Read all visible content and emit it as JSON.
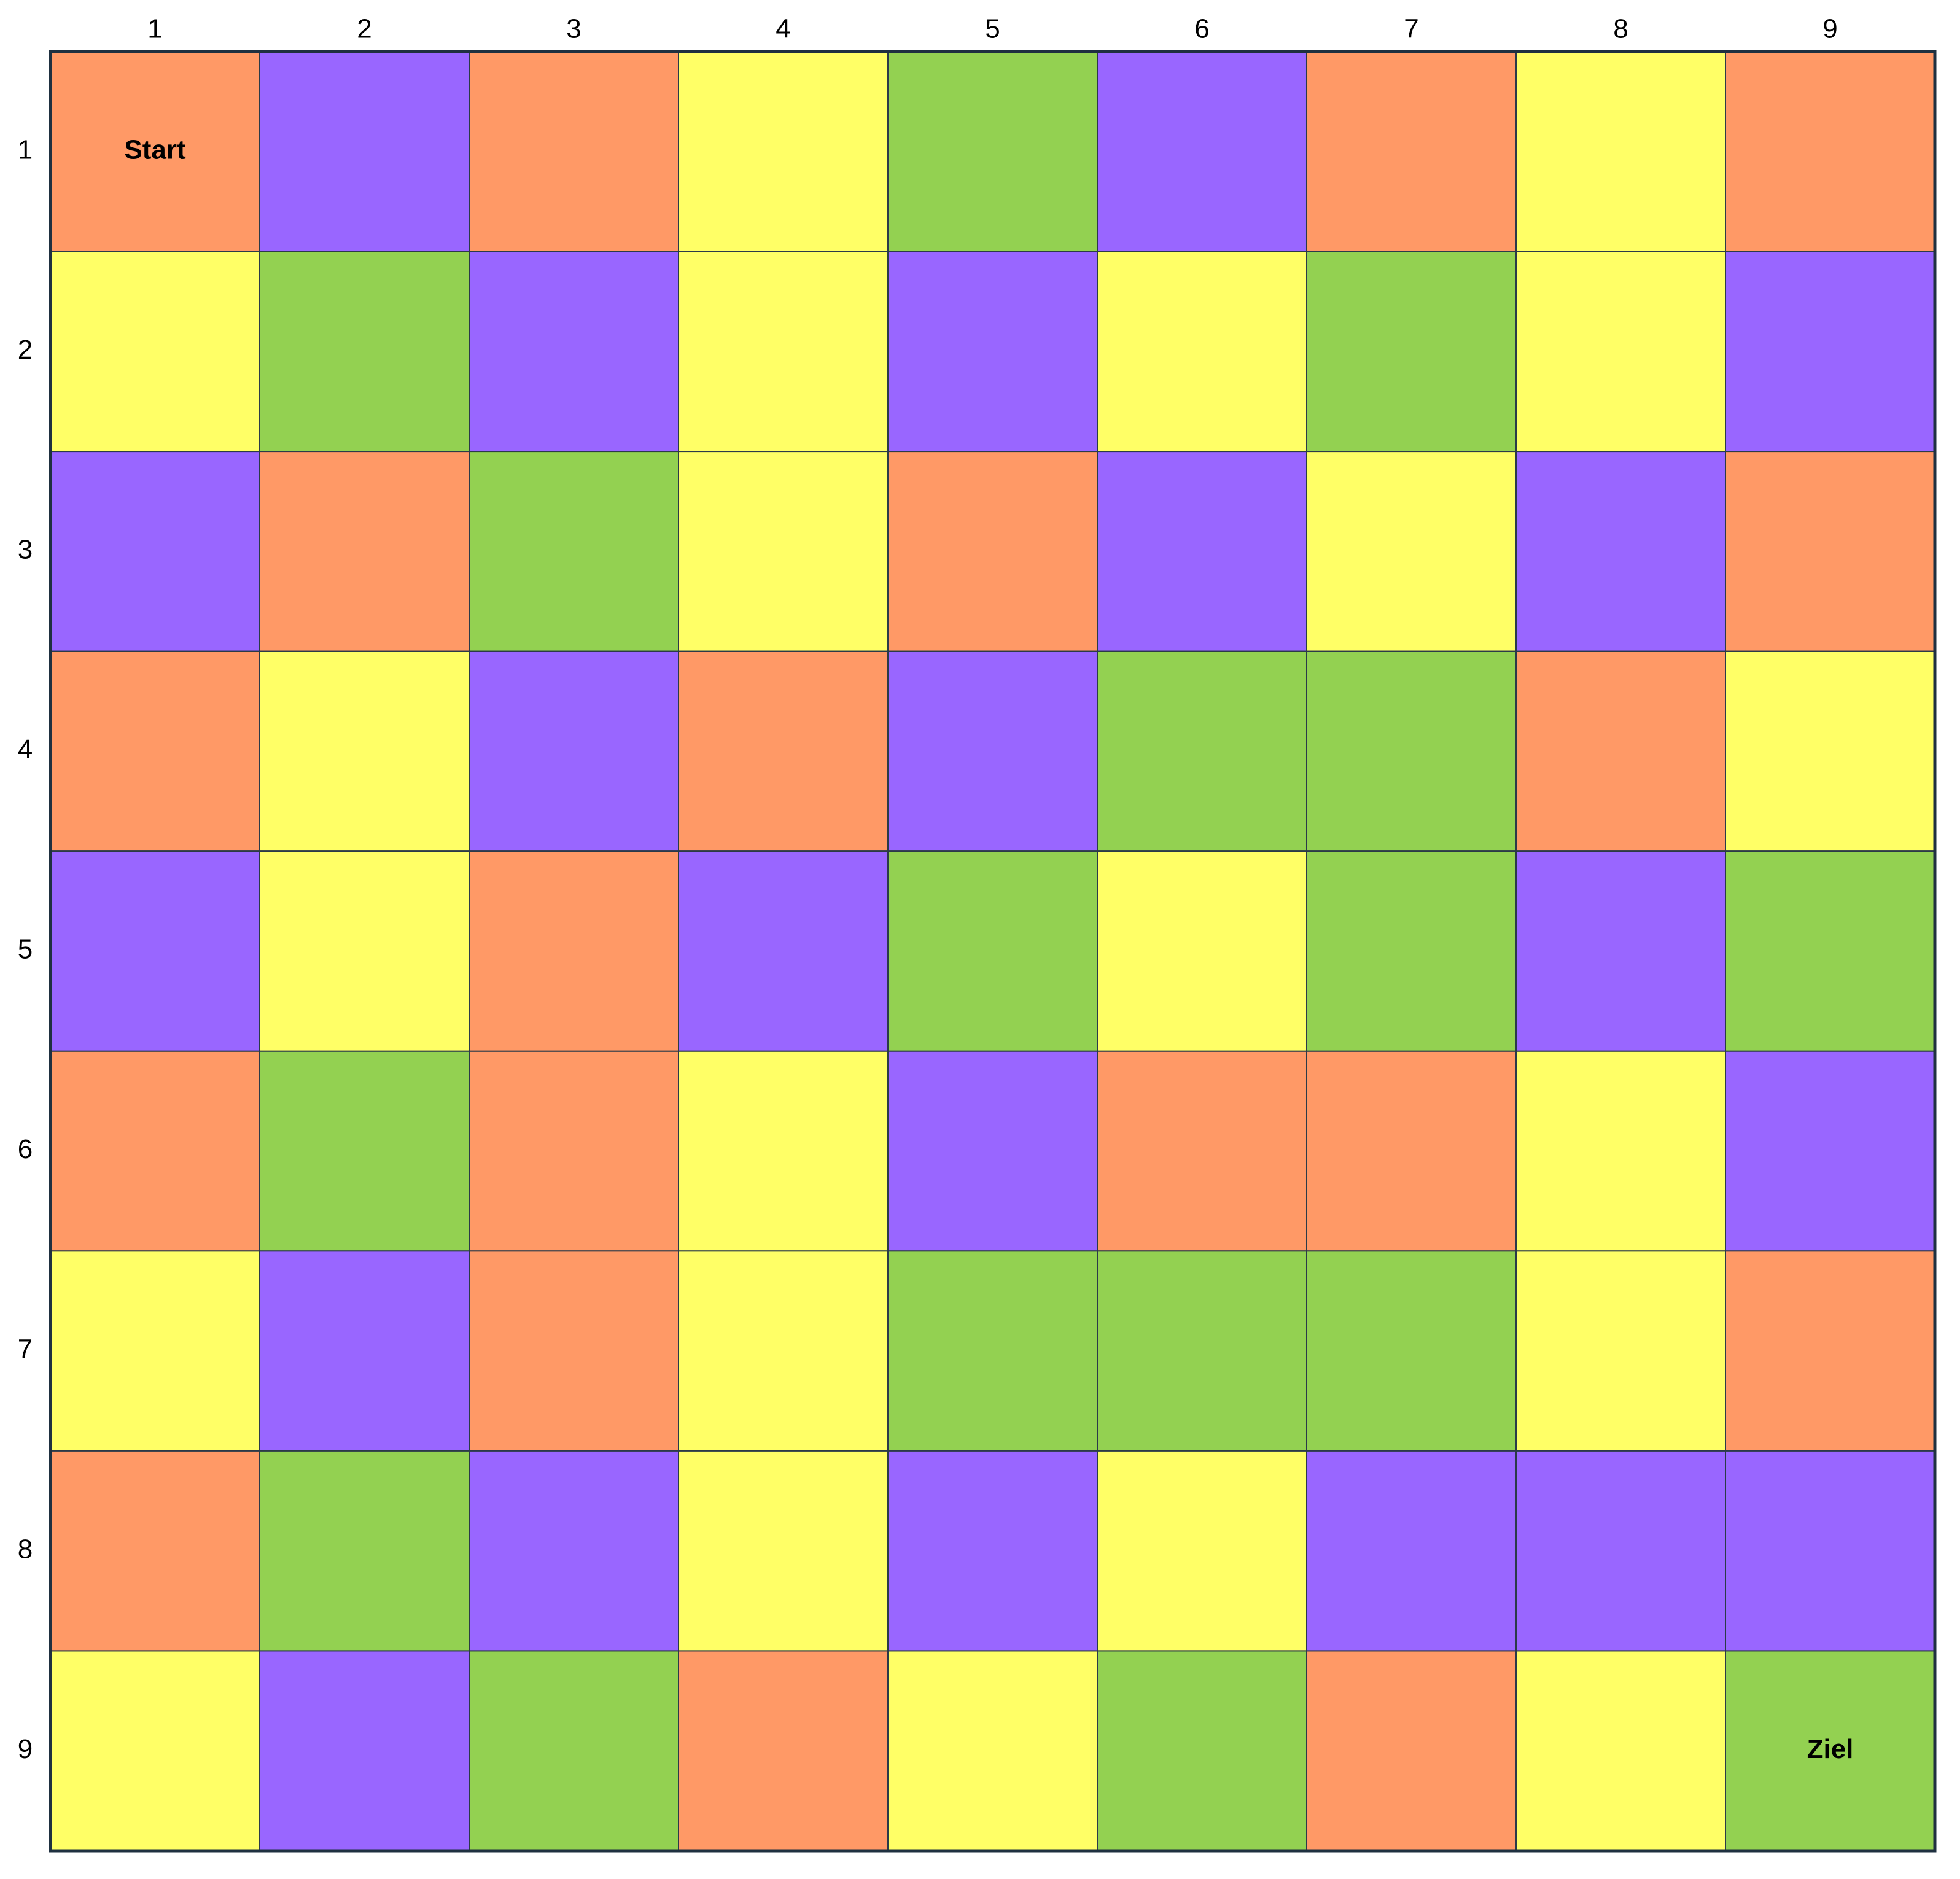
{
  "board": {
    "column_labels": [
      "1",
      "2",
      "3",
      "4",
      "5",
      "6",
      "7",
      "8",
      "9"
    ],
    "row_labels": [
      "1",
      "2",
      "3",
      "4",
      "5",
      "6",
      "7",
      "8",
      "9"
    ],
    "start_label": "Start",
    "goal_label": "Ziel",
    "cells": [
      [
        "#ff9966",
        "#9966ff",
        "#ff9966",
        "#ffff66",
        "#93d151",
        "#9966ff",
        "#ff9966",
        "#ffff66",
        "#ff9966"
      ],
      [
        "#ffff66",
        "#93d151",
        "#9966ff",
        "#ffff66",
        "#9966ff",
        "#ffff66",
        "#93d151",
        "#ffff66",
        "#9966ff"
      ],
      [
        "#9966ff",
        "#ff9966",
        "#93d151",
        "#ffff66",
        "#ff9966",
        "#9966ff",
        "#ffff66",
        "#9966ff",
        "#ff9966"
      ],
      [
        "#ff9966",
        "#ffff66",
        "#9966ff",
        "#ff9966",
        "#9966ff",
        "#93d151",
        "#93d151",
        "#ff9966",
        "#ffff66"
      ],
      [
        "#9966ff",
        "#ffff66",
        "#ff9966",
        "#9966ff",
        "#93d151",
        "#ffff66",
        "#93d151",
        "#9966ff",
        "#93d151"
      ],
      [
        "#ff9966",
        "#93d151",
        "#ff9966",
        "#ffff66",
        "#9966ff",
        "#ff9966",
        "#ff9966",
        "#ffff66",
        "#9966ff"
      ],
      [
        "#ffff66",
        "#9966ff",
        "#ff9966",
        "#ffff66",
        "#93d151",
        "#93d151",
        "#93d151",
        "#ffff66",
        "#ff9966"
      ],
      [
        "#ff9966",
        "#93d151",
        "#9966ff",
        "#ffff66",
        "#9966ff",
        "#ffff66",
        "#9966ff",
        "#9966ff",
        "#9966ff"
      ],
      [
        "#ffff66",
        "#9966ff",
        "#93d151",
        "#ff9966",
        "#ffff66",
        "#93d151",
        "#ff9966",
        "#ffff66",
        "#93d151"
      ]
    ]
  }
}
